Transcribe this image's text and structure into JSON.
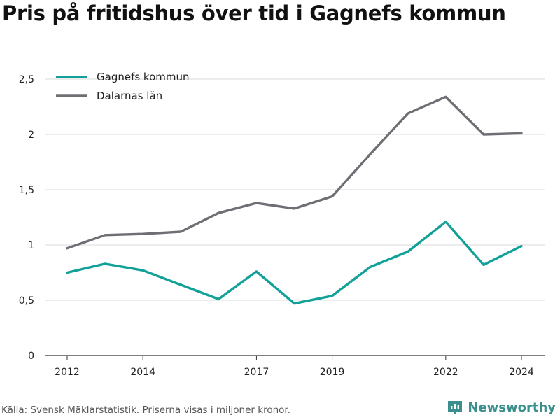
{
  "title": "Pris på fritidshus över tid i Gagnefs kommun",
  "source": "Källa: Svensk Mäklarstatistik. Priserna visas i miljoner kronor.",
  "brand": {
    "name": "Newsworthy",
    "icon": "newsworthy-logo-icon",
    "color": "#3b8f8c"
  },
  "chart_data": {
    "type": "line",
    "title": "Pris på fritidshus över tid i Gagnefs kommun",
    "x": [
      2012,
      2013,
      2014,
      2015,
      2016,
      2017,
      2018,
      2019,
      2020,
      2021,
      2022,
      2023,
      2024
    ],
    "x_ticks": [
      "2012",
      "2014",
      "2017",
      "2019",
      "2022",
      "2024"
    ],
    "y_ticks": [
      "0",
      "0,5",
      "1",
      "1,5",
      "2",
      "2,5"
    ],
    "ylim": [
      0,
      2.6
    ],
    "grid": true,
    "legend_position": "top-left",
    "series": [
      {
        "name": "Gagnefs kommun",
        "color": "#12a199",
        "values": [
          0.75,
          0.83,
          0.77,
          0.64,
          0.51,
          0.76,
          0.47,
          0.54,
          0.8,
          0.94,
          1.21,
          0.82,
          0.99
        ]
      },
      {
        "name": "Dalarnas län",
        "color": "#6e6e75",
        "values": [
          0.97,
          1.09,
          1.1,
          1.12,
          1.29,
          1.38,
          1.33,
          1.44,
          1.82,
          2.19,
          2.34,
          2.0,
          2.01
        ]
      }
    ]
  }
}
